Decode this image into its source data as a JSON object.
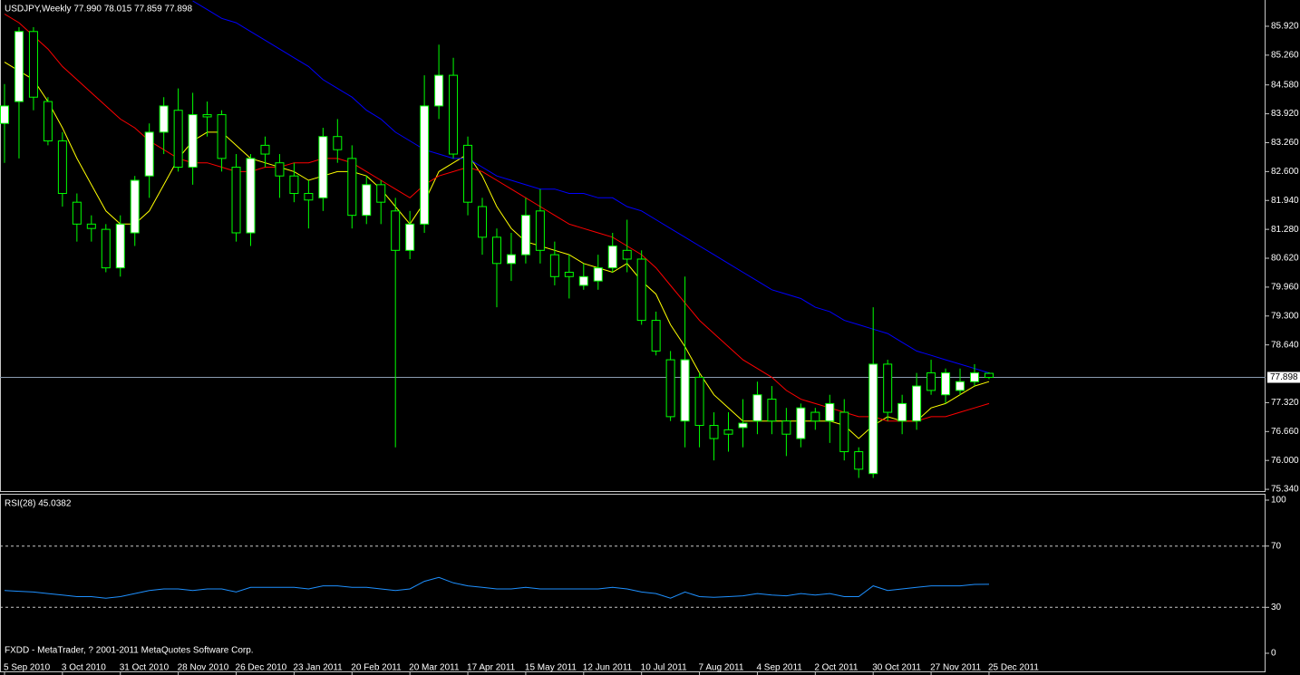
{
  "chart_data": [
    {
      "type": "candlestick",
      "title": "USDJPY,Weekly  77.990 78.015 77.859 77.898",
      "categories": [
        "5 Sep 2010",
        null,
        null,
        null,
        "3 Oct 2010",
        null,
        null,
        null,
        "31 Oct 2010",
        null,
        null,
        null,
        "28 Nov 2010",
        null,
        null,
        null,
        "26 Dec 2010",
        null,
        null,
        null,
        "23 Jan 2011",
        null,
        null,
        null,
        "20 Feb 2011",
        null,
        null,
        null,
        "20 Mar 2011",
        null,
        null,
        null,
        "17 Apr 2011",
        null,
        null,
        null,
        "15 May 2011",
        null,
        null,
        null,
        "12 Jun 2011",
        null,
        null,
        null,
        "10 Jul 2011",
        null,
        null,
        null,
        "7 Aug 2011",
        null,
        null,
        null,
        "4 Sep 2011",
        null,
        null,
        null,
        "2 Oct 2011",
        null,
        null,
        null,
        "30 Oct 2011",
        null,
        null,
        null,
        "27 Nov 2011",
        null,
        null,
        null,
        "25 Dec 2011"
      ],
      "open": [
        83.7,
        84.2,
        85.8,
        84.2,
        83.3,
        81.9,
        81.4,
        81.28,
        80.4,
        81.2,
        82.5,
        83.5,
        84.0,
        82.7,
        83.9,
        83.9,
        82.7,
        81.2,
        83.2,
        82.8,
        82.5,
        82.1,
        82.0,
        83.4,
        82.9,
        81.6,
        82.3,
        81.7,
        80.8,
        81.4,
        84.1,
        84.8,
        83.2,
        81.8,
        81.1,
        80.5,
        80.7,
        81.7,
        80.7,
        80.3,
        80.0,
        80.1,
        80.4,
        80.8,
        80.6,
        79.2,
        78.3,
        76.9,
        77.9,
        76.8,
        76.7,
        76.75,
        76.9,
        77.4,
        76.9,
        76.5,
        77.1,
        76.9,
        77.1,
        76.2,
        75.7,
        78.2,
        76.9,
        76.9,
        78.0,
        77.5,
        77.6,
        77.8,
        77.99
      ],
      "high": [
        84.6,
        85.9,
        85.9,
        84.3,
        83.5,
        82.1,
        81.6,
        81.4,
        81.6,
        82.5,
        83.7,
        84.3,
        84.5,
        84.4,
        84.2,
        84.0,
        83.0,
        83.0,
        83.4,
        83.0,
        82.8,
        82.4,
        83.6,
        83.8,
        83.2,
        82.5,
        82.4,
        82.0,
        81.7,
        84.8,
        85.5,
        85.2,
        83.4,
        82.0,
        81.3,
        81.2,
        82.0,
        82.2,
        81.0,
        80.7,
        80.5,
        80.7,
        81.2,
        81.5,
        80.8,
        79.4,
        78.5,
        80.2,
        78.0,
        77.1,
        77.1,
        77.4,
        77.8,
        77.7,
        77.2,
        77.3,
        77.2,
        77.5,
        77.4,
        76.3,
        79.5,
        78.3,
        77.5,
        78.0,
        78.3,
        78.1,
        78.1,
        78.2,
        78.015
      ],
      "low": [
        82.8,
        82.9,
        84.0,
        83.2,
        81.8,
        81.0,
        81.0,
        80.3,
        80.2,
        80.9,
        82.0,
        83.0,
        82.6,
        82.3,
        83.4,
        82.6,
        81.0,
        80.9,
        82.7,
        82.0,
        81.9,
        81.3,
        81.7,
        82.8,
        81.3,
        81.4,
        81.4,
        76.3,
        80.6,
        81.2,
        83.8,
        82.9,
        81.6,
        80.7,
        79.5,
        80.1,
        80.5,
        80.5,
        80.0,
        79.7,
        79.9,
        79.9,
        80.3,
        80.3,
        79.1,
        78.4,
        76.9,
        76.3,
        76.3,
        76.0,
        76.2,
        76.3,
        76.6,
        76.6,
        76.1,
        76.3,
        76.7,
        76.4,
        76.0,
        75.6,
        75.6,
        76.9,
        76.6,
        76.7,
        77.5,
        77.3,
        77.5,
        77.7,
        77.859
      ],
      "close": [
        84.1,
        85.8,
        84.3,
        83.3,
        82.1,
        81.4,
        81.3,
        80.4,
        81.4,
        82.4,
        83.5,
        84.1,
        82.7,
        83.9,
        83.85,
        82.9,
        81.2,
        82.9,
        83.0,
        82.5,
        82.1,
        81.95,
        83.4,
        83.1,
        81.6,
        82.3,
        81.9,
        80.8,
        81.4,
        84.1,
        84.8,
        83.0,
        81.9,
        81.1,
        80.5,
        80.7,
        81.6,
        80.8,
        80.2,
        80.2,
        80.2,
        80.4,
        80.9,
        80.6,
        79.2,
        78.5,
        77.0,
        78.3,
        76.8,
        76.5,
        76.6,
        76.85,
        77.5,
        76.9,
        76.6,
        77.2,
        76.9,
        77.3,
        76.2,
        75.8,
        78.2,
        77.1,
        77.3,
        77.7,
        77.6,
        78.0,
        77.8,
        78.0,
        77.898
      ],
      "color": "#00ff00",
      "up_color": "#ffffff",
      "down_color": "#000000",
      "series": [
        {
          "color": "#ffff00",
          "values": [
            85.1,
            84.9,
            84.7,
            84.2,
            83.6,
            82.9,
            82.3,
            81.7,
            81.4,
            81.4,
            81.7,
            82.3,
            82.9,
            83.3,
            83.5,
            83.5,
            83.2,
            82.9,
            82.8,
            82.7,
            82.6,
            82.4,
            82.5,
            82.6,
            82.6,
            82.5,
            82.2,
            81.8,
            81.4,
            81.9,
            82.6,
            82.8,
            83.0,
            82.5,
            81.8,
            81.3,
            81.0,
            80.9,
            80.8,
            80.7,
            80.5,
            80.4,
            80.3,
            80.5,
            80.1,
            79.8,
            79.1,
            78.6,
            78.0,
            77.5,
            77.2,
            76.9,
            76.9,
            76.9,
            76.9,
            76.9,
            76.9,
            76.9,
            76.8,
            76.5,
            76.8,
            77.0,
            76.9,
            76.9,
            77.2,
            77.3,
            77.5,
            77.7,
            77.8
          ]
        },
        {
          "color": "#ff0000",
          "values": [
            86.2,
            86.0,
            85.7,
            85.4,
            85.0,
            84.7,
            84.4,
            84.1,
            83.8,
            83.6,
            83.3,
            83.1,
            82.9,
            82.8,
            82.8,
            82.7,
            82.6,
            82.6,
            82.7,
            82.7,
            82.8,
            82.8,
            82.9,
            82.9,
            82.8,
            82.6,
            82.4,
            82.2,
            82.0,
            82.3,
            82.5,
            82.6,
            82.7,
            82.6,
            82.4,
            82.2,
            82.0,
            81.8,
            81.6,
            81.4,
            81.3,
            81.2,
            81.1,
            80.9,
            80.7,
            80.4,
            80.0,
            79.6,
            79.2,
            78.9,
            78.6,
            78.3,
            78.1,
            77.9,
            77.6,
            77.4,
            77.3,
            77.2,
            77.1,
            77.0,
            77.0,
            76.9,
            76.9,
            76.9,
            77.0,
            77.0,
            77.1,
            77.2,
            77.3
          ]
        },
        {
          "color": "#0000ff",
          "values": [
            null,
            null,
            null,
            null,
            null,
            null,
            null,
            null,
            null,
            null,
            null,
            null,
            null,
            86.5,
            86.3,
            86.1,
            86.0,
            85.8,
            85.6,
            85.4,
            85.2,
            85.0,
            84.7,
            84.5,
            84.3,
            84.0,
            83.8,
            83.5,
            83.3,
            83.1,
            83.0,
            82.9,
            82.9,
            82.7,
            82.5,
            82.4,
            82.3,
            82.2,
            82.2,
            82.1,
            82.1,
            82.0,
            82.0,
            81.8,
            81.7,
            81.5,
            81.3,
            81.1,
            80.9,
            80.7,
            80.5,
            80.3,
            80.1,
            79.9,
            79.8,
            79.7,
            79.5,
            79.4,
            79.2,
            79.1,
            79.0,
            78.9,
            78.7,
            78.5,
            78.4,
            78.3,
            78.2,
            78.1,
            78.0
          ]
        }
      ],
      "ylim": [
        75.3,
        86.52
      ],
      "yticks": [
        {
          "value": 85.92,
          "label": "85.920"
        },
        {
          "value": 85.26,
          "label": "85.260"
        },
        {
          "value": 84.58,
          "label": "84.580"
        },
        {
          "value": 83.92,
          "label": "83.920"
        },
        {
          "value": 83.26,
          "label": "83.260"
        },
        {
          "value": 82.6,
          "label": "82.600"
        },
        {
          "value": 81.94,
          "label": "81.940"
        },
        {
          "value": 81.28,
          "label": "81.280"
        },
        {
          "value": 80.62,
          "label": "80.620"
        },
        {
          "value": 79.96,
          "label": "79.960"
        },
        {
          "value": 79.3,
          "label": "79.300"
        },
        {
          "value": 78.64,
          "label": "78.640"
        },
        {
          "value": 77.32,
          "label": "77.320"
        },
        {
          "value": 76.66,
          "label": "76.660"
        },
        {
          "value": 76.0,
          "label": "76.000"
        },
        {
          "value": 75.34,
          "label": "75.340"
        }
      ],
      "last_price": {
        "value": 77.898,
        "label": "77.898"
      },
      "footer": "FXDD - MetaTrader, ? 2001-2011 MetaQuotes Software Corp."
    },
    {
      "type": "line",
      "title": "RSI(28) 45.0382",
      "series": [
        {
          "color": "#1e90ff",
          "values": [
            41,
            40.5,
            40,
            39,
            38,
            37,
            37,
            36,
            37,
            39,
            41,
            42,
            42,
            41,
            42,
            42,
            40,
            43,
            43,
            43,
            43,
            42,
            44,
            44,
            43,
            43,
            42,
            41,
            42,
            47,
            49.5,
            46,
            44,
            43,
            42,
            42,
            43,
            42,
            42,
            42,
            42,
            42,
            43,
            42,
            40,
            39,
            36,
            40,
            37,
            36.5,
            37,
            37.5,
            39,
            38,
            37.5,
            39,
            38,
            39,
            37,
            37,
            44,
            41,
            42,
            43,
            44,
            44,
            44,
            45,
            45.0382
          ]
        }
      ],
      "ylim": [
        0,
        100
      ],
      "yticks": [
        0,
        30,
        70,
        100
      ]
    }
  ]
}
